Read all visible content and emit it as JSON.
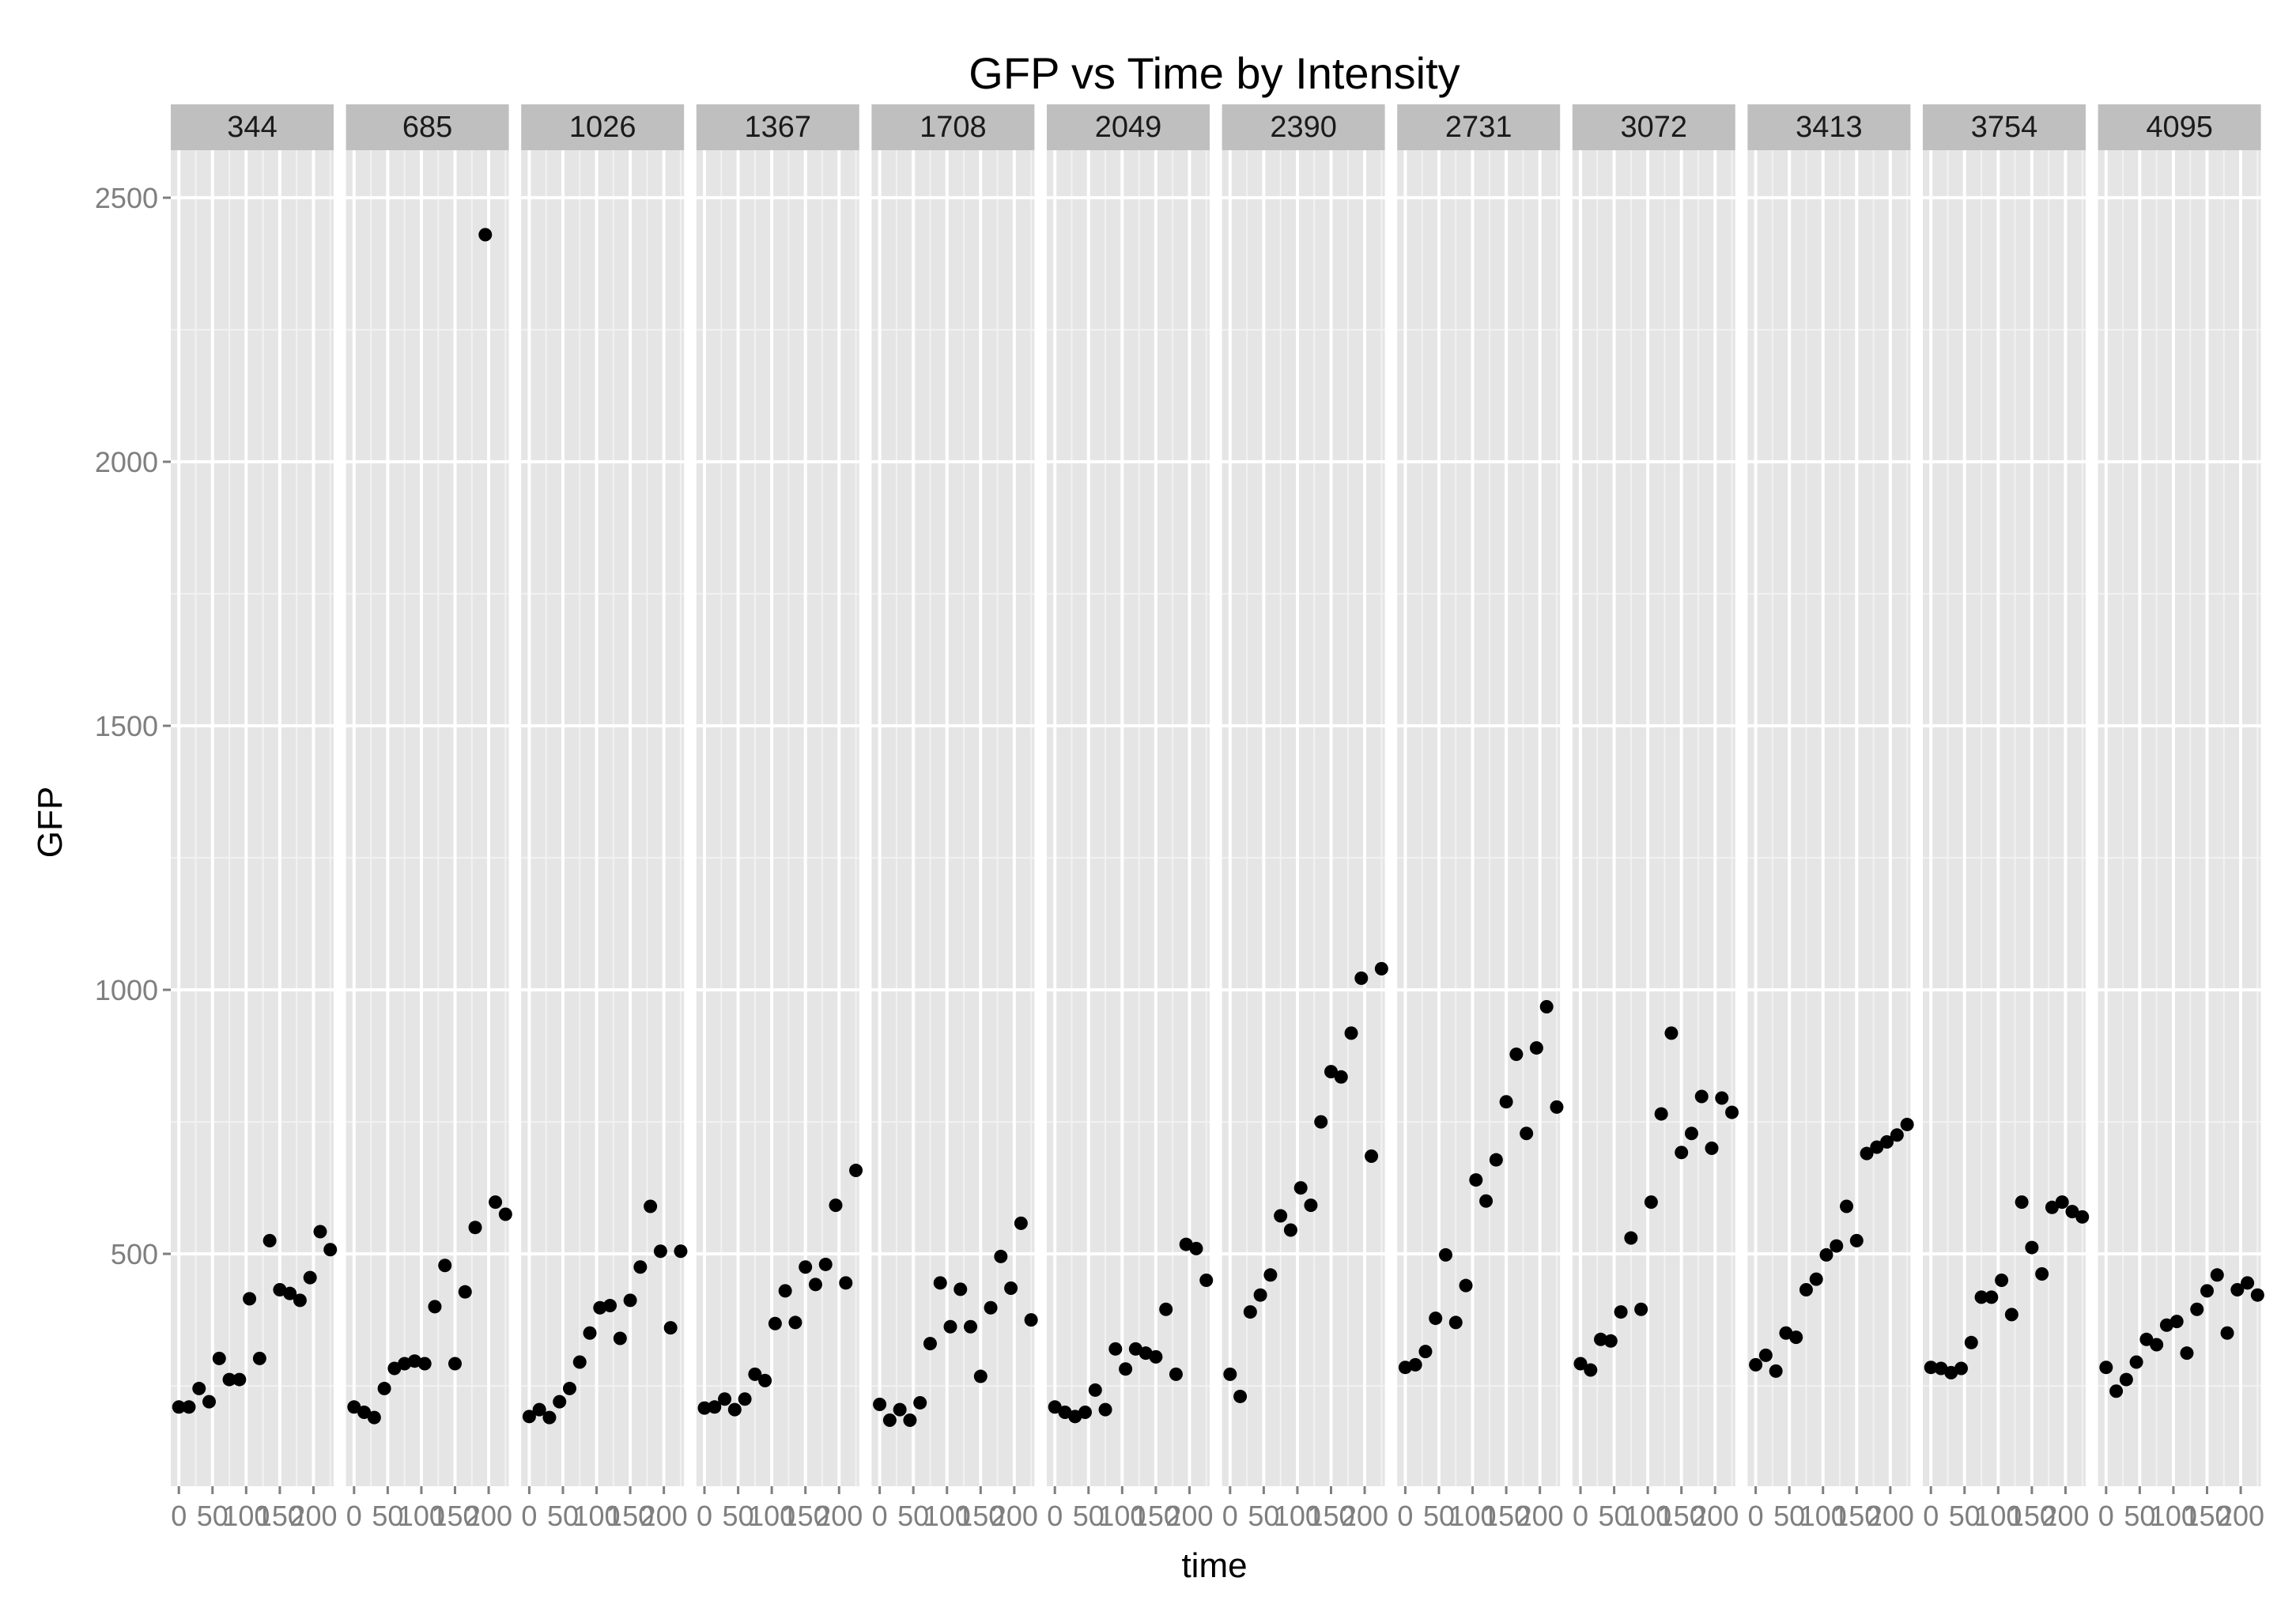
{
  "chart_data": {
    "type": "scatter",
    "title": "GFP vs Time by Intensity",
    "xlabel": "time",
    "ylabel": "GFP",
    "ylim": [
      60,
      2590
    ],
    "xlim": [
      -12,
      230
    ],
    "yticks": [
      500,
      1000,
      1500,
      2000,
      2500
    ],
    "xticks": [
      0,
      50,
      100,
      150,
      200
    ],
    "xtick_labels": [
      "0",
      "50",
      "100",
      "150",
      "200"
    ],
    "grid": true,
    "background": "#e5e5e5",
    "strip_color": "#bfbfbf",
    "point_color": "#000000",
    "x": [
      0,
      15,
      30,
      45,
      60,
      75,
      90,
      105,
      120,
      135,
      150,
      165,
      180,
      195,
      210,
      225
    ],
    "panels": [
      {
        "label": "344",
        "y": [
          210,
          210,
          245,
          220,
          302,
          262,
          262,
          415,
          302,
          525,
          432,
          425,
          412,
          455,
          542,
          508
        ]
      },
      {
        "label": "685",
        "y": [
          210,
          200,
          190,
          245,
          283,
          292,
          297,
          292,
          400,
          478,
          292,
          428,
          550,
          2430,
          598,
          575
        ]
      },
      {
        "label": "1026",
        "y": [
          192,
          205,
          190,
          220,
          245,
          295,
          350,
          398,
          402,
          340,
          412,
          475,
          590,
          505,
          360,
          505
        ]
      },
      {
        "label": "1367",
        "y": [
          208,
          210,
          225,
          205,
          225,
          272,
          260,
          368,
          430,
          370,
          475,
          442,
          480,
          592,
          445,
          658
        ]
      },
      {
        "label": "1708",
        "y": [
          215,
          185,
          205,
          185,
          218,
          330,
          445,
          362,
          433,
          362,
          268,
          398,
          495,
          435,
          558,
          375
        ]
      },
      {
        "label": "2049",
        "y": [
          210,
          200,
          192,
          200,
          242,
          205,
          320,
          282,
          320,
          312,
          305,
          395,
          272,
          518,
          510,
          450
        ]
      },
      {
        "label": "2390",
        "y": [
          272,
          230,
          390,
          422,
          460,
          572,
          545,
          625,
          592,
          750,
          845,
          835,
          918,
          1022,
          685,
          1040
        ]
      },
      {
        "label": "2731",
        "y": [
          285,
          290,
          315,
          378,
          498,
          370,
          440,
          640,
          600,
          678,
          788,
          878,
          728,
          890,
          968,
          778
        ]
      },
      {
        "label": "3072",
        "y": [
          292,
          280,
          338,
          335,
          390,
          530,
          395,
          598,
          765,
          918,
          692,
          728,
          798,
          700,
          795,
          768
        ]
      },
      {
        "label": "3413",
        "y": [
          290,
          308,
          278,
          350,
          342,
          432,
          452,
          498,
          515,
          590,
          525,
          690,
          702,
          712,
          725,
          745
        ]
      },
      {
        "label": "3754",
        "y": [
          285,
          283,
          275,
          283,
          332,
          418,
          418,
          450,
          385,
          598,
          512,
          462,
          588,
          598,
          580,
          570
        ]
      },
      {
        "label": "4095",
        "y": [
          285,
          240,
          262,
          295,
          338,
          328,
          365,
          372,
          312,
          395,
          430,
          460,
          350,
          432,
          445,
          422
        ]
      }
    ]
  }
}
